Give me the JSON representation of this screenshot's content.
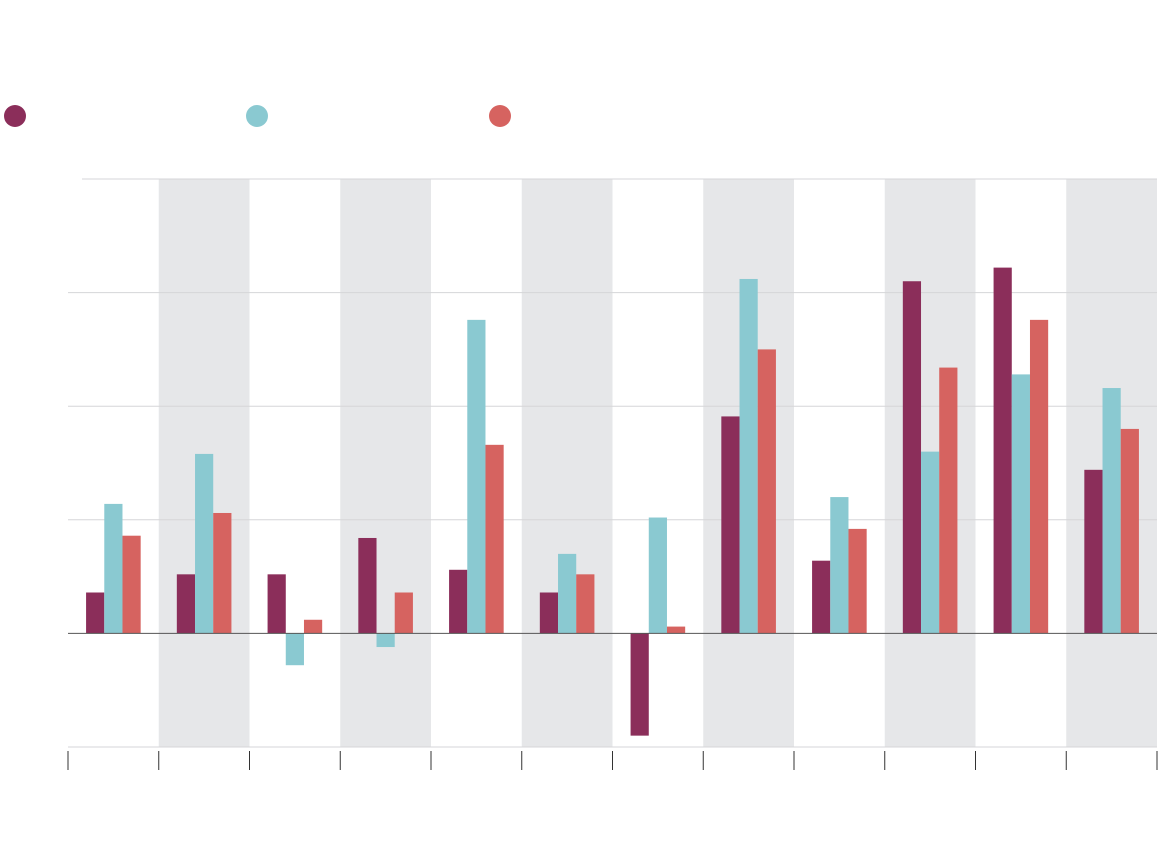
{
  "chart_data": {
    "type": "bar",
    "title": "",
    "xlabel": "",
    "ylabel": "",
    "categories": [
      "",
      "",
      "",
      "",
      "",
      "",
      "",
      "",
      "",
      "",
      "",
      ""
    ],
    "ylim": [
      -1,
      4
    ],
    "yticks": [
      -1,
      0,
      1,
      2,
      3,
      4
    ],
    "grid": true,
    "legend_position": "top-left",
    "alternating_column_shading": true,
    "series": [
      {
        "color": "#8b2e5a",
        "values": [
          0.36,
          0.52,
          0.52,
          0.84,
          0.56,
          0.36,
          -0.9,
          1.91,
          0.64,
          3.1,
          3.22,
          1.44
        ]
      },
      {
        "color": "#8ac9d1",
        "values": [
          1.14,
          1.58,
          -0.28,
          -0.12,
          2.76,
          0.7,
          1.02,
          3.12,
          1.2,
          1.6,
          2.28,
          2.16
        ]
      },
      {
        "color": "#d66360",
        "values": [
          0.86,
          1.06,
          0.12,
          0.36,
          1.66,
          0.52,
          0.06,
          2.5,
          0.92,
          2.34,
          2.76,
          1.8
        ]
      }
    ]
  }
}
